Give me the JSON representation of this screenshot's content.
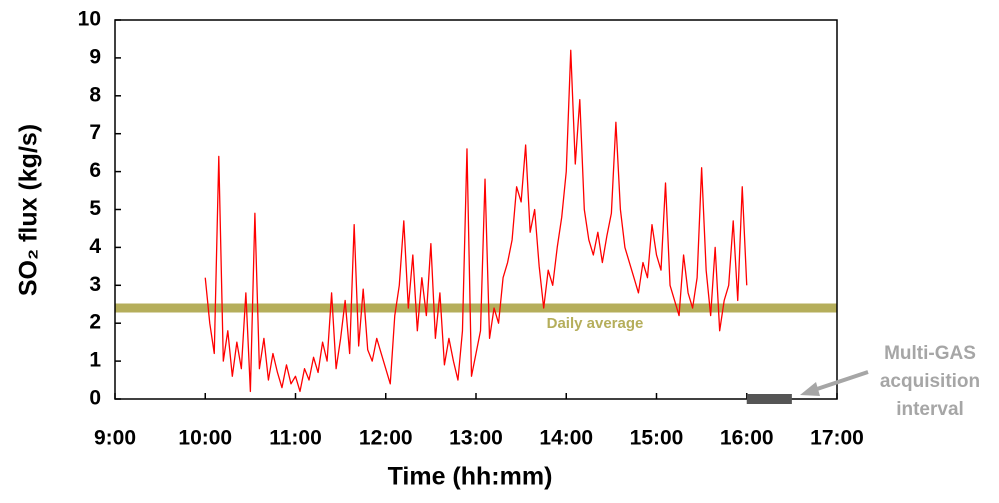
{
  "chart_data": {
    "type": "line",
    "x_label": "Time (hh:mm)",
    "y_label": "SO₂ flux (kg/s)",
    "xlim": [
      9,
      17
    ],
    "ylim": [
      0,
      10
    ],
    "xticks": [
      {
        "value": 9,
        "label": "9:00"
      },
      {
        "value": 10,
        "label": "10:00"
      },
      {
        "value": 11,
        "label": "11:00"
      },
      {
        "value": 12,
        "label": "12:00"
      },
      {
        "value": 13,
        "label": "13:00"
      },
      {
        "value": 14,
        "label": "14:00"
      },
      {
        "value": 15,
        "label": "15:00"
      },
      {
        "value": 16,
        "label": "16:00"
      },
      {
        "value": 17,
        "label": "17:00"
      }
    ],
    "yticks": [
      0,
      1,
      2,
      3,
      4,
      5,
      6,
      7,
      8,
      9,
      10
    ],
    "x": [
      10.0,
      10.05,
      10.1,
      10.15,
      10.2,
      10.25,
      10.3,
      10.35,
      10.4,
      10.45,
      10.5,
      10.55,
      10.6,
      10.65,
      10.7,
      10.75,
      10.8,
      10.85,
      10.9,
      10.95,
      11.0,
      11.05,
      11.1,
      11.15,
      11.2,
      11.25,
      11.3,
      11.35,
      11.4,
      11.45,
      11.5,
      11.55,
      11.6,
      11.65,
      11.7,
      11.75,
      11.8,
      11.85,
      11.9,
      11.95,
      12.0,
      12.05,
      12.1,
      12.15,
      12.2,
      12.25,
      12.3,
      12.35,
      12.4,
      12.45,
      12.5,
      12.55,
      12.6,
      12.65,
      12.7,
      12.75,
      12.8,
      12.85,
      12.9,
      12.95,
      13.0,
      13.05,
      13.1,
      13.15,
      13.2,
      13.25,
      13.3,
      13.35,
      13.4,
      13.45,
      13.5,
      13.55,
      13.6,
      13.65,
      13.7,
      13.75,
      13.8,
      13.85,
      13.9,
      13.95,
      14.0,
      14.05,
      14.1,
      14.15,
      14.2,
      14.25,
      14.3,
      14.35,
      14.4,
      14.45,
      14.5,
      14.55,
      14.6,
      14.65,
      14.7,
      14.75,
      14.8,
      14.85,
      14.9,
      14.95,
      15.0,
      15.05,
      15.1,
      15.15,
      15.2,
      15.25,
      15.3,
      15.35,
      15.4,
      15.45,
      15.5,
      15.55,
      15.6,
      15.65,
      15.7,
      15.75,
      15.8,
      15.85,
      15.9,
      15.95,
      16.0
    ],
    "series": [
      {
        "name": "SO₂ flux",
        "color": "#ff0000",
        "values": [
          3.2,
          2.0,
          1.2,
          6.4,
          1.0,
          1.8,
          0.6,
          1.5,
          0.8,
          2.8,
          0.2,
          4.9,
          0.8,
          1.6,
          0.5,
          1.2,
          0.7,
          0.3,
          0.9,
          0.4,
          0.6,
          0.2,
          0.8,
          0.5,
          1.1,
          0.7,
          1.5,
          1.0,
          2.8,
          0.8,
          1.6,
          2.6,
          1.2,
          4.6,
          1.4,
          2.9,
          1.3,
          1.0,
          1.6,
          1.2,
          0.8,
          0.4,
          2.2,
          3.0,
          4.7,
          2.4,
          3.8,
          1.8,
          3.2,
          2.2,
          4.1,
          1.6,
          2.8,
          0.9,
          1.6,
          1.0,
          0.5,
          1.8,
          6.6,
          0.6,
          1.2,
          1.8,
          5.8,
          1.6,
          2.4,
          2.0,
          3.2,
          3.6,
          4.2,
          5.6,
          5.2,
          6.7,
          4.4,
          5.0,
          3.5,
          2.4,
          3.4,
          3.0,
          4.0,
          4.8,
          6.0,
          9.2,
          6.2,
          7.9,
          5.0,
          4.2,
          3.8,
          4.4,
          3.6,
          4.3,
          4.9,
          7.3,
          5.0,
          4.0,
          3.6,
          3.2,
          2.8,
          3.6,
          3.2,
          4.6,
          3.8,
          3.4,
          5.7,
          3.0,
          2.6,
          2.2,
          3.8,
          2.8,
          2.4,
          3.2,
          6.1,
          3.4,
          2.2,
          4.0,
          1.8,
          2.6,
          3.0,
          4.7,
          2.6,
          5.6,
          3.0
        ]
      }
    ],
    "average": {
      "label": "Daily average",
      "value": 2.4,
      "color": "#b5ae5b"
    },
    "interval": {
      "label": [
        "Multi-GAS",
        "acquisition",
        "interval"
      ],
      "x": [
        16,
        16.5
      ],
      "color": "#555555",
      "text_color": "#a6a6a6"
    }
  }
}
